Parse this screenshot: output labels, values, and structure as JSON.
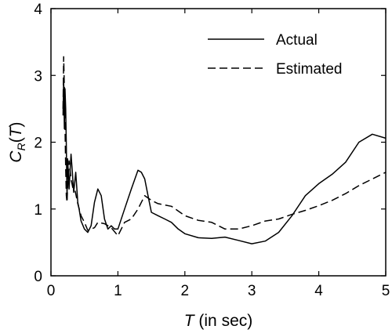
{
  "chart_data": {
    "type": "line",
    "title": "",
    "xlabel": {
      "symbol": "T",
      "rest": " (in sec)"
    },
    "ylabel": {
      "symbol": "C",
      "subscript": "R",
      "open": "(",
      "arg": "T",
      "close": ")"
    },
    "xlim": [
      0,
      5
    ],
    "ylim": [
      0,
      4
    ],
    "xticks": [
      0,
      1,
      2,
      3,
      4,
      5
    ],
    "yticks": [
      0,
      1,
      2,
      3,
      4
    ],
    "xtick_labels": [
      "0",
      "1",
      "2",
      "3",
      "4",
      "5"
    ],
    "ytick_labels": [
      "0",
      "1",
      "2",
      "3",
      "4"
    ],
    "grid": false,
    "legend_position": "top-right",
    "series": [
      {
        "name": "Actual",
        "style": "solid",
        "color": "#000000",
        "x": [
          0.18,
          0.19,
          0.2,
          0.21,
          0.22,
          0.23,
          0.24,
          0.25,
          0.27,
          0.3,
          0.32,
          0.34,
          0.37,
          0.4,
          0.42,
          0.45,
          0.5,
          0.55,
          0.6,
          0.65,
          0.7,
          0.75,
          0.8,
          0.85,
          0.9,
          0.95,
          1.0,
          1.1,
          1.2,
          1.3,
          1.35,
          1.4,
          1.45,
          1.5,
          1.6,
          1.7,
          1.8,
          1.9,
          2.0,
          2.2,
          2.4,
          2.6,
          2.8,
          3.0,
          3.2,
          3.4,
          3.6,
          3.8,
          4.0,
          4.2,
          4.4,
          4.6,
          4.8,
          5.0
        ],
        "values": [
          2.4,
          2.95,
          2.2,
          2.8,
          2.5,
          1.95,
          1.15,
          1.75,
          1.3,
          1.82,
          1.55,
          1.25,
          1.55,
          1.1,
          1.0,
          0.82,
          0.7,
          0.65,
          0.75,
          1.1,
          1.3,
          1.2,
          0.85,
          0.7,
          0.75,
          0.7,
          0.7,
          1.0,
          1.3,
          1.58,
          1.55,
          1.45,
          1.2,
          0.95,
          0.9,
          0.85,
          0.8,
          0.7,
          0.63,
          0.57,
          0.56,
          0.58,
          0.53,
          0.48,
          0.52,
          0.65,
          0.9,
          1.2,
          1.38,
          1.52,
          1.7,
          2.0,
          2.12,
          2.06
        ]
      },
      {
        "name": "Estimated",
        "style": "dashed",
        "color": "#000000",
        "x": [
          0.18,
          0.19,
          0.2,
          0.21,
          0.22,
          0.23,
          0.24,
          0.25,
          0.27,
          0.3,
          0.33,
          0.36,
          0.4,
          0.45,
          0.5,
          0.55,
          0.6,
          0.65,
          0.7,
          0.8,
          0.9,
          1.0,
          1.1,
          1.2,
          1.3,
          1.4,
          1.5,
          1.6,
          1.8,
          2.0,
          2.2,
          2.4,
          2.6,
          2.8,
          3.0,
          3.2,
          3.4,
          3.6,
          3.8,
          4.0,
          4.2,
          4.4,
          4.6,
          4.8,
          5.0
        ],
        "values": [
          2.5,
          3.28,
          2.8,
          2.25,
          1.6,
          1.2,
          1.1,
          1.35,
          1.72,
          1.45,
          1.3,
          1.28,
          1.08,
          0.9,
          0.8,
          0.68,
          0.7,
          0.72,
          0.8,
          0.78,
          0.72,
          0.6,
          0.8,
          0.85,
          1.0,
          1.2,
          1.13,
          1.08,
          1.04,
          0.9,
          0.83,
          0.8,
          0.7,
          0.7,
          0.75,
          0.82,
          0.85,
          0.92,
          0.98,
          1.05,
          1.13,
          1.23,
          1.35,
          1.45,
          1.55
        ]
      }
    ]
  }
}
